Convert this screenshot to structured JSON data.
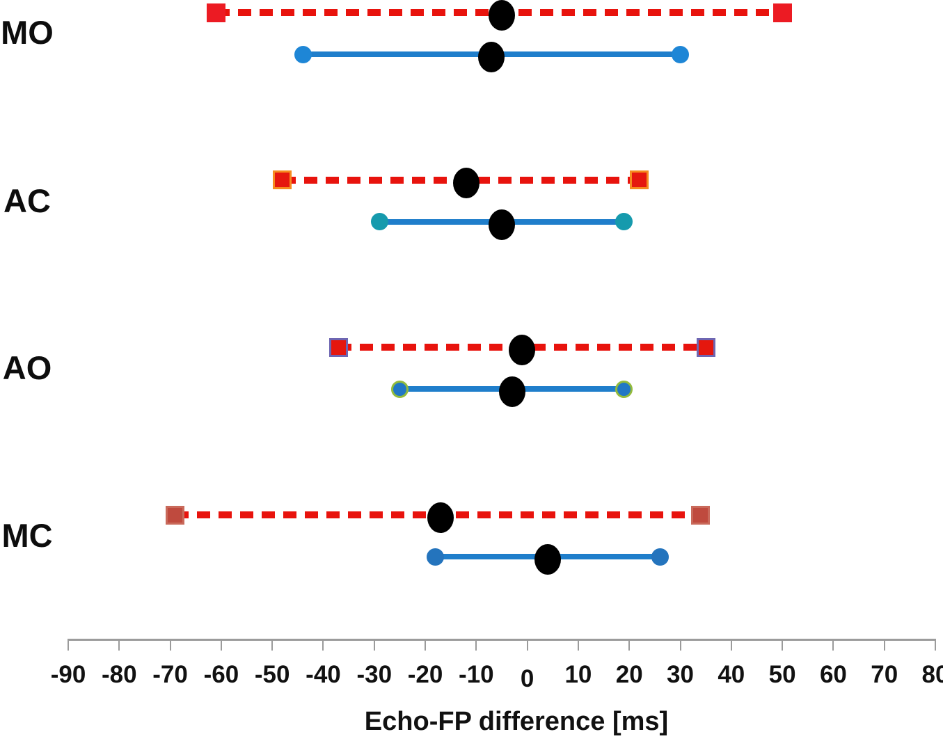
{
  "chart_data": {
    "type": "interval",
    "title": "",
    "xlabel": "Echo-FP difference [ms]",
    "xlim": [
      -90,
      80
    ],
    "x_ticks": [
      -90,
      -80,
      -70,
      -60,
      -50,
      -40,
      -30,
      -20,
      -10,
      0,
      10,
      20,
      30,
      40,
      50,
      60,
      70,
      80
    ],
    "grid": false,
    "legend": "none",
    "axis_line_color": "#9b9b9b",
    "tick_label_color": "#111111",
    "dashed_line_color": "#e8130d",
    "solid_line_color": "#1f7ecb",
    "mean_dot_color": "#000000",
    "groups": [
      {
        "label": "MO",
        "dashed": {
          "low": -61,
          "mean": -5,
          "high": 50
        },
        "solid": {
          "low": -44,
          "mean": -7,
          "high": 30
        },
        "square_fill": "#ec1b23",
        "square_border": "#ec1b23",
        "circle_fill": "#1e86d6",
        "circle_border": "#1e86d6"
      },
      {
        "label": "AC",
        "dashed": {
          "low": -48,
          "mean": -12,
          "high": 22
        },
        "solid": {
          "low": -29,
          "mean": -5,
          "high": 19
        },
        "square_fill": "#e5170e",
        "square_border": "#f68b1f",
        "circle_fill": "#169aad",
        "circle_border": "#169aad"
      },
      {
        "label": "AO",
        "dashed": {
          "low": -37,
          "mean": -1,
          "high": 35
        },
        "solid": {
          "low": -25,
          "mean": -3,
          "high": 19
        },
        "square_fill": "#e5170e",
        "square_border": "#6e66b2",
        "circle_fill": "#2177c5",
        "circle_border": "#93bb3c"
      },
      {
        "label": "MC",
        "dashed": {
          "low": -69,
          "mean": -17,
          "high": 34
        },
        "solid": {
          "low": -18,
          "mean": 4,
          "high": 26
        },
        "square_fill": "#bf4a3e",
        "square_border": "#c96a5b",
        "circle_fill": "#2474bd",
        "circle_border": "#2474bd"
      }
    ]
  }
}
